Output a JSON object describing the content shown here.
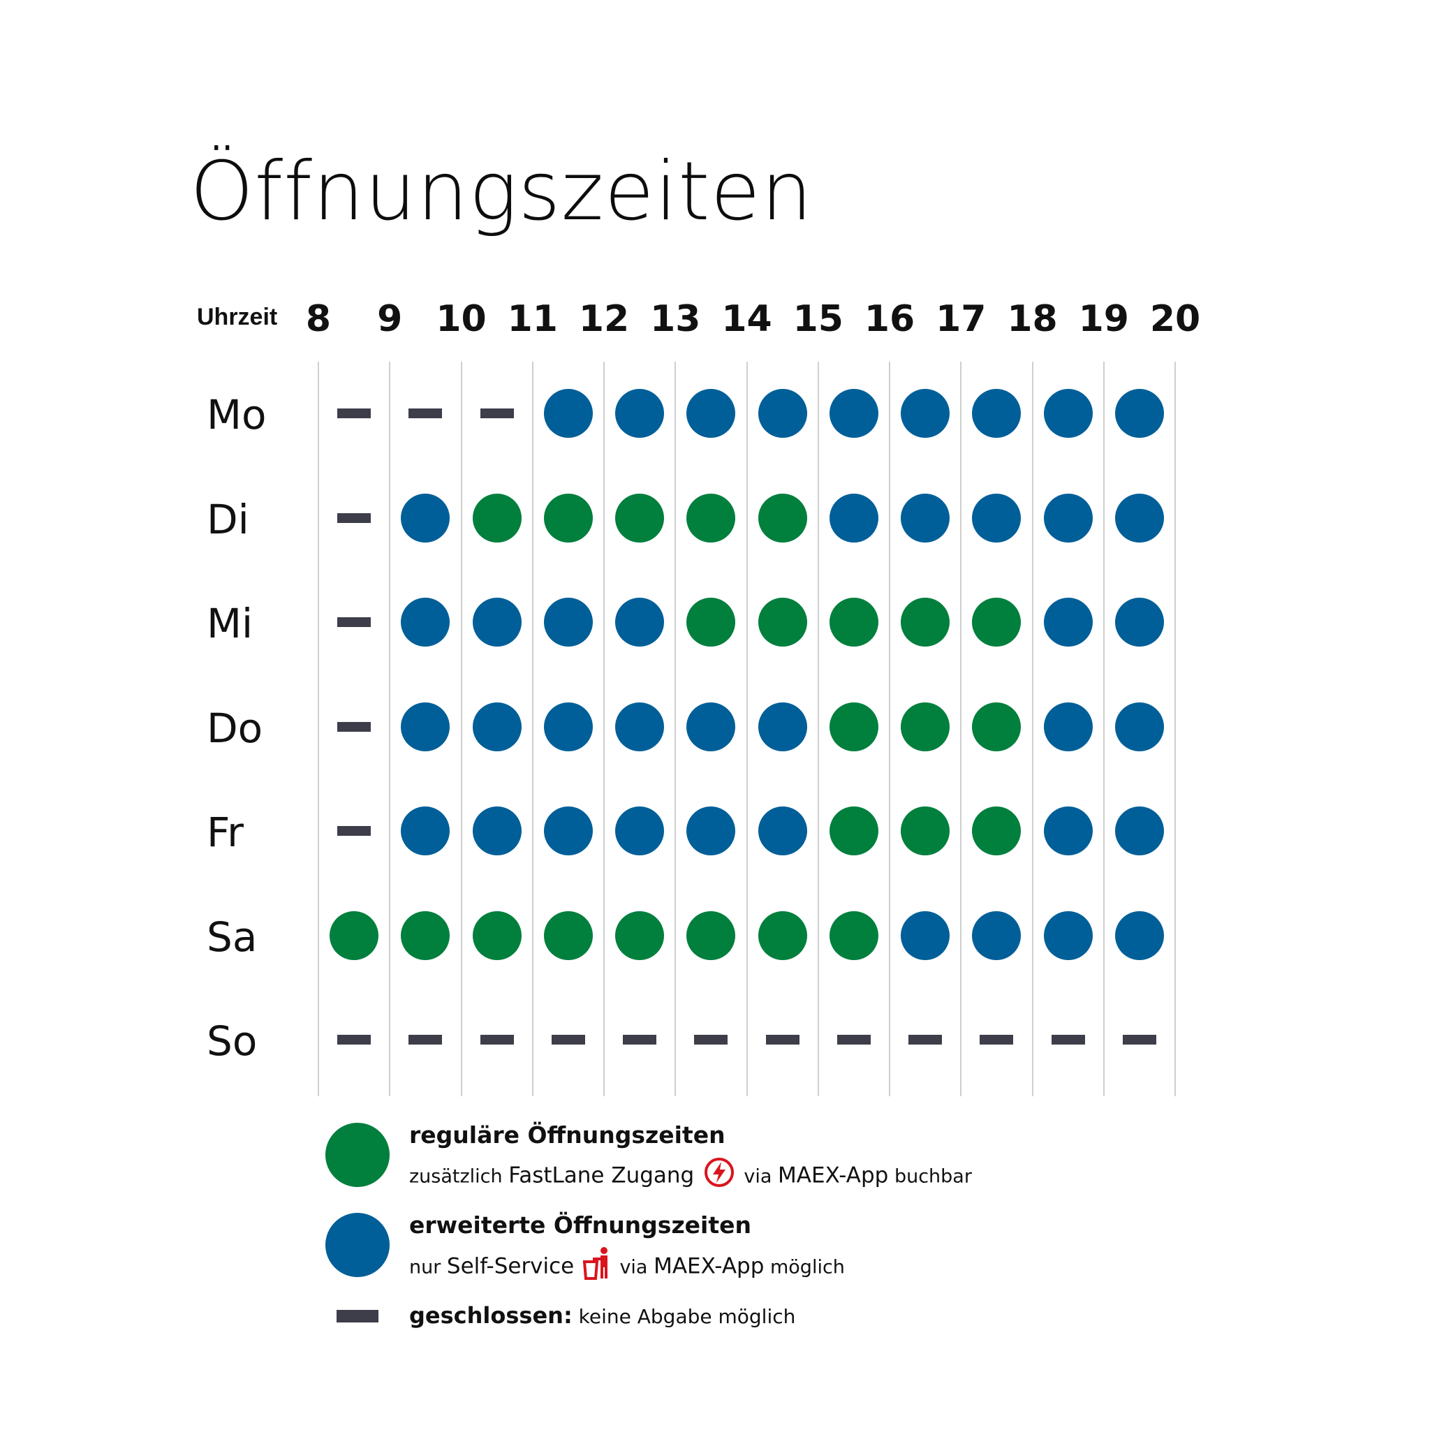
{
  "title": "Öffnungszeiten",
  "time_label": "Uhrzeit",
  "hours": [
    "8",
    "9",
    "10",
    "11",
    "12",
    "13",
    "14",
    "15",
    "16",
    "17",
    "18",
    "19",
    "20"
  ],
  "colors": {
    "regular": "#007f3d",
    "extended": "#005f98",
    "closed": "#3d3e4a",
    "icon": "#d9141e"
  },
  "days": [
    {
      "label": "Mo",
      "slots": [
        "closed",
        "closed",
        "closed",
        "extended",
        "extended",
        "extended",
        "extended",
        "extended",
        "extended",
        "extended",
        "extended",
        "extended"
      ]
    },
    {
      "label": "Di",
      "slots": [
        "closed",
        "extended",
        "regular",
        "regular",
        "regular",
        "regular",
        "regular",
        "extended",
        "extended",
        "extended",
        "extended",
        "extended"
      ]
    },
    {
      "label": "Mi",
      "slots": [
        "closed",
        "extended",
        "extended",
        "extended",
        "extended",
        "regular",
        "regular",
        "regular",
        "regular",
        "regular",
        "extended",
        "extended"
      ]
    },
    {
      "label": "Do",
      "slots": [
        "closed",
        "extended",
        "extended",
        "extended",
        "extended",
        "extended",
        "extended",
        "regular",
        "regular",
        "regular",
        "extended",
        "extended"
      ]
    },
    {
      "label": "Fr",
      "slots": [
        "closed",
        "extended",
        "extended",
        "extended",
        "extended",
        "extended",
        "extended",
        "regular",
        "regular",
        "regular",
        "extended",
        "extended"
      ]
    },
    {
      "label": "Sa",
      "slots": [
        "regular",
        "regular",
        "regular",
        "regular",
        "regular",
        "regular",
        "regular",
        "regular",
        "extended",
        "extended",
        "extended",
        "extended"
      ]
    },
    {
      "label": "So",
      "slots": [
        "closed",
        "closed",
        "closed",
        "closed",
        "closed",
        "closed",
        "closed",
        "closed",
        "closed",
        "closed",
        "closed",
        "closed"
      ]
    }
  ],
  "legend": {
    "regular": {
      "title": "reguläre Öffnungszeiten",
      "sub_prefix": "zusätzlich",
      "sub_feature": "FastLane Zugang",
      "icon": "lightning-icon",
      "sub_via": "via",
      "sub_app": "MAEX-App",
      "sub_suffix": "buchbar"
    },
    "extended": {
      "title": "erweiterte Öffnungszeiten",
      "sub_prefix": "nur",
      "sub_feature": "Self-Service",
      "icon": "person-bin-icon",
      "sub_via": "via",
      "sub_app": "MAEX-App",
      "sub_suffix": "möglich"
    },
    "closed": {
      "title": "geschlossen:",
      "text": "keine Abgabe möglich"
    }
  }
}
